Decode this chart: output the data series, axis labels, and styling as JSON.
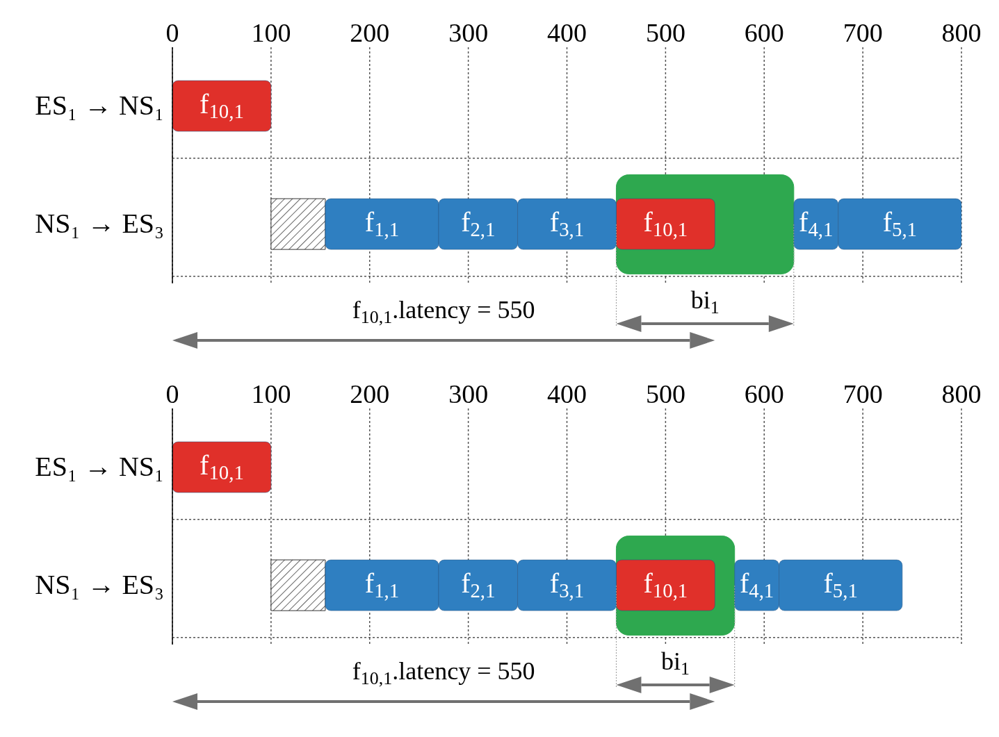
{
  "chart_data": [
    {
      "type": "bar",
      "orientation": "horizontal",
      "categories": [
        "ES₁ → NS₁",
        "NS₁ → ES₃"
      ],
      "xlim": [
        0,
        800
      ],
      "xticks": [
        0,
        100,
        200,
        300,
        400,
        500,
        600,
        700,
        800
      ],
      "grid": true,
      "series": [
        {
          "name": "f$_{10,1}$",
          "color": "#e0302a",
          "values": [
            100,
            100
          ],
          "base": [
            0,
            450
          ]
        },
        {
          "color": "#333333",
          "values": [
            null,
            55
          ],
          "base": [
            null,
            100
          ]
        },
        {
          "name": "f$_{1,1}$",
          "color": "#2f7fc1",
          "values": [
            null,
            115
          ],
          "base": [
            null,
            155
          ]
        },
        {
          "name": "f$_{2,1}$",
          "color": "#2f7fc1",
          "values": [
            null,
            80
          ],
          "base": [
            null,
            270
          ]
        },
        {
          "name": "f$_{3,1}$",
          "color": "#2f7fc1",
          "values": [
            null,
            100
          ],
          "base": [
            null,
            350
          ]
        },
        {
          "name": "f$_{4,1}$",
          "color": "#2f7fc1",
          "values": [
            null,
            45
          ],
          "base": [
            null,
            630
          ]
        },
        {
          "name": "f$_{5,1}$",
          "color": "#2f7fc1",
          "values": [
            null,
            125
          ],
          "base": [
            null,
            675
          ]
        }
      ],
      "bands": [
        {
          "axis": "x",
          "from": 450,
          "to": 630,
          "label": "bi$_{1}$",
          "color": "#2ea84f"
        }
      ],
      "annotations": [
        "f$_{10,1}$.latency = 550"
      ]
    },
    {
      "type": "bar",
      "orientation": "horizontal",
      "categories": [
        "ES₁ → NS₁",
        "NS₁ → ES₃"
      ],
      "xlim": [
        0,
        800
      ],
      "xticks": [
        0,
        100,
        200,
        300,
        400,
        500,
        600,
        700,
        800
      ],
      "grid": true,
      "series": [
        {
          "name": "f$_{10,1}$",
          "color": "#e0302a",
          "values": [
            100,
            100
          ],
          "base": [
            0,
            450
          ]
        },
        {
          "color": "#333333",
          "values": [
            null,
            55
          ],
          "base": [
            null,
            100
          ]
        },
        {
          "name": "f$_{1,1}$",
          "color": "#2f7fc1",
          "values": [
            null,
            115
          ],
          "base": [
            null,
            155
          ]
        },
        {
          "name": "f$_{2,1}$",
          "color": "#2f7fc1",
          "values": [
            null,
            80
          ],
          "base": [
            null,
            270
          ]
        },
        {
          "name": "f$_{3,1}$",
          "color": "#2f7fc1",
          "values": [
            null,
            100
          ],
          "base": [
            null,
            350
          ]
        },
        {
          "name": "f$_{4,1}$",
          "color": "#2f7fc1",
          "values": [
            null,
            45
          ],
          "base": [
            null,
            570
          ]
        },
        {
          "name": "f$_{5,1}$",
          "color": "#2f7fc1",
          "values": [
            null,
            125
          ],
          "base": [
            null,
            615
          ]
        }
      ],
      "bands": [
        {
          "axis": "x",
          "from": 450,
          "to": 570,
          "label": "bi$_{1}$",
          "color": "#2ea84f"
        }
      ],
      "annotations": [
        "f$_{10,1}$.latency = 550"
      ]
    }
  ]
}
